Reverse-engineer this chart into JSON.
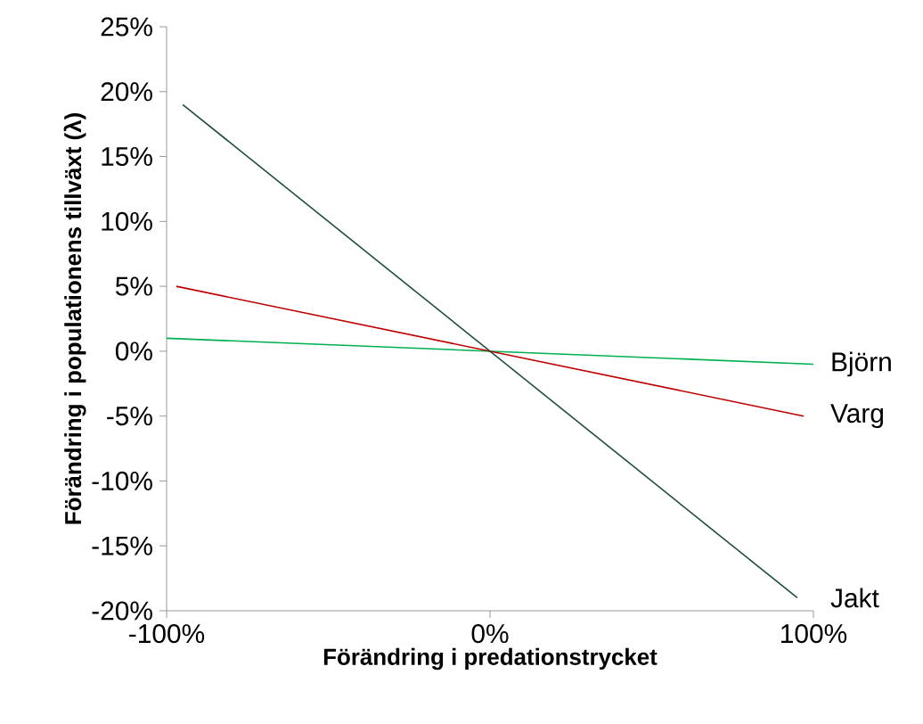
{
  "chart_data": {
    "type": "line",
    "xlabel": "Förändring i predationstrycket",
    "ylabel": "Förändring i populationens tillväxt (λ)",
    "xlim": [
      -100,
      100
    ],
    "ylim": [
      -20,
      25
    ],
    "xticks": [
      {
        "value": -100,
        "label": "-100%"
      },
      {
        "value": 0,
        "label": "0%"
      },
      {
        "value": 100,
        "label": "100%"
      }
    ],
    "yticks": [
      {
        "value": -20,
        "label": "-20%"
      },
      {
        "value": -15,
        "label": "-15%"
      },
      {
        "value": -10,
        "label": "-10%"
      },
      {
        "value": -5,
        "label": "-5%"
      },
      {
        "value": 0,
        "label": "0%"
      },
      {
        "value": 5,
        "label": "5%"
      },
      {
        "value": 10,
        "label": "10%"
      },
      {
        "value": 15,
        "label": "15%"
      },
      {
        "value": 20,
        "label": "20%"
      },
      {
        "value": 25,
        "label": "25%"
      }
    ],
    "marker": "none",
    "series": [
      {
        "name": "Björn",
        "color": "#00b050",
        "x": [
          -100,
          100
        ],
        "values": [
          1,
          -1
        ]
      },
      {
        "name": "Varg",
        "color": "#c00000",
        "x": [
          -97,
          97
        ],
        "values": [
          5,
          -5
        ]
      },
      {
        "name": "Jakt",
        "color": "#1e4d3a",
        "x": [
          -95,
          95
        ],
        "values": [
          19,
          -19
        ]
      }
    ]
  }
}
